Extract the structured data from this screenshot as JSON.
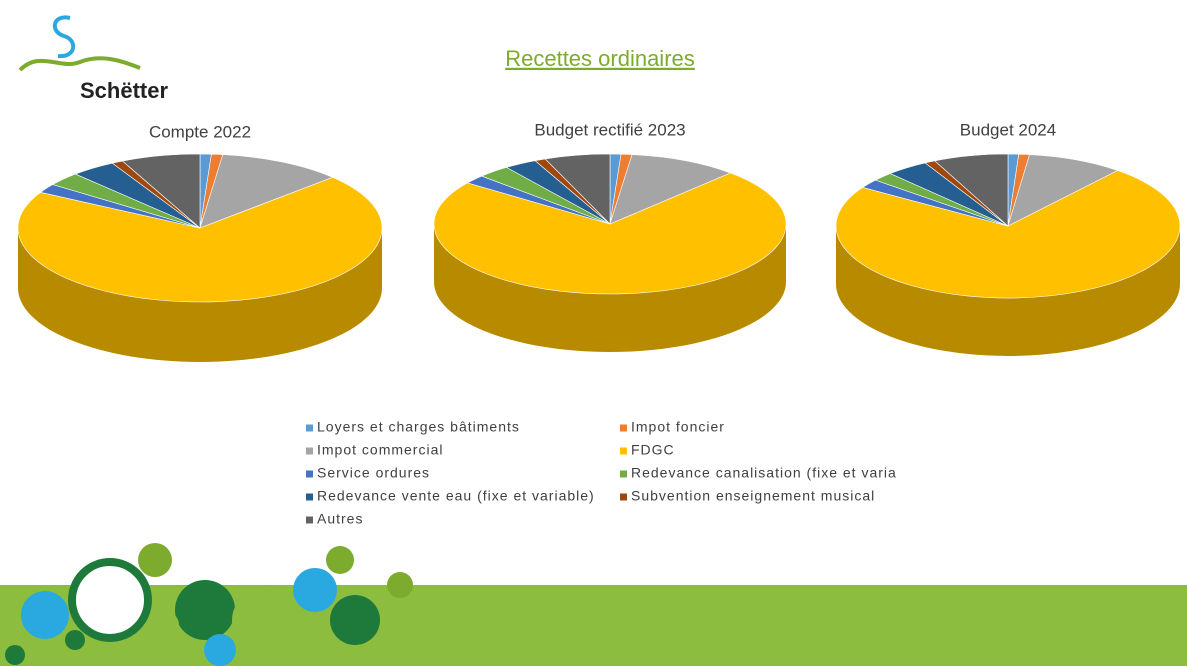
{
  "header": {
    "title": "Recettes ordinaires",
    "logo": "Schëtter"
  },
  "chart_data": [
    {
      "type": "pie",
      "title": "Compte 2022",
      "categories": [
        "Loyers et charges bâtiments",
        "Impot foncier",
        "Impot commercial",
        "FDGC",
        "Service ordures",
        "Redevance canalisation (fixe et varia",
        "Redevance vente eau (fixe et variable)",
        "Subvention enseignement musical",
        "Autres"
      ],
      "values": [
        1,
        1,
        11,
        70,
        2,
        3,
        4,
        1,
        7
      ],
      "colors": [
        "#5b9bd5",
        "#ed7d31",
        "#a5a5a5",
        "#ffc000",
        "#4472c4",
        "#70ad47",
        "#255e91",
        "#9e480e",
        "#636363"
      ]
    },
    {
      "type": "pie",
      "title": "Budget rectifié 2023",
      "categories": [
        "Loyers et charges bâtiments",
        "Impot foncier",
        "Impot commercial",
        "FDGC",
        "Service ordures",
        "Redevance canalisation (fixe et varia",
        "Redevance vente eau (fixe et variable)",
        "Subvention enseignement musical",
        "Autres"
      ],
      "values": [
        1,
        1,
        10,
        73,
        2,
        3,
        3,
        1,
        6
      ],
      "colors": [
        "#5b9bd5",
        "#ed7d31",
        "#a5a5a5",
        "#ffc000",
        "#4472c4",
        "#70ad47",
        "#255e91",
        "#9e480e",
        "#636363"
      ]
    },
    {
      "type": "pie",
      "title": "Budget 2024",
      "categories": [
        "Loyers et charges bâtiments",
        "Impot foncier",
        "Impot commercial",
        "FDGC",
        "Service ordures",
        "Redevance canalisation (fixe et varia",
        "Redevance vente eau (fixe et variable)",
        "Subvention enseignement musical",
        "Autres"
      ],
      "values": [
        1,
        1,
        9,
        73,
        2,
        2,
        4,
        1,
        7
      ],
      "colors": [
        "#5b9bd5",
        "#ed7d31",
        "#a5a5a5",
        "#ffc000",
        "#4472c4",
        "#70ad47",
        "#255e91",
        "#9e480e",
        "#636363"
      ]
    }
  ]
}
